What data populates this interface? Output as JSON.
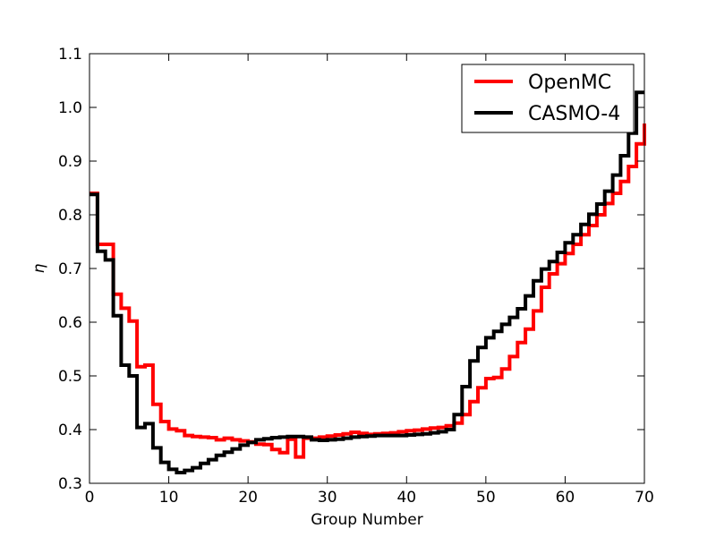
{
  "chart_data": {
    "type": "line",
    "step": "post",
    "title": "",
    "xlabel": "Group Number",
    "ylabel": "η",
    "xlim": [
      0,
      70
    ],
    "ylim": [
      0.3,
      1.1
    ],
    "xticks": [
      "0",
      "10",
      "20",
      "30",
      "40",
      "50",
      "60",
      "70"
    ],
    "yticks": [
      "0.3",
      "0.4",
      "0.5",
      "0.6",
      "0.7",
      "0.8",
      "0.9",
      "1.0",
      "1.1"
    ],
    "grid": false,
    "legend_position": "top-right",
    "x": [
      0,
      1,
      2,
      3,
      4,
      5,
      6,
      7,
      8,
      9,
      10,
      11,
      12,
      13,
      14,
      15,
      16,
      17,
      18,
      19,
      20,
      21,
      22,
      23,
      24,
      25,
      26,
      27,
      28,
      29,
      30,
      31,
      32,
      33,
      34,
      35,
      36,
      37,
      38,
      39,
      40,
      41,
      42,
      43,
      44,
      45,
      46,
      47,
      48,
      49,
      50,
      51,
      52,
      53,
      54,
      55,
      56,
      57,
      58,
      59,
      60,
      61,
      62,
      63,
      64,
      65,
      66,
      67,
      68,
      69,
      70
    ],
    "series": [
      {
        "name": "OpenMC",
        "color": "#ff0000",
        "values": [
          0.84,
          0.745,
          0.745,
          0.652,
          0.626,
          0.602,
          0.517,
          0.52,
          0.447,
          0.415,
          0.401,
          0.398,
          0.389,
          0.387,
          0.386,
          0.385,
          0.381,
          0.384,
          0.381,
          0.379,
          0.377,
          0.373,
          0.372,
          0.363,
          0.357,
          0.382,
          0.349,
          0.384,
          0.384,
          0.386,
          0.388,
          0.39,
          0.392,
          0.395,
          0.393,
          0.391,
          0.392,
          0.393,
          0.394,
          0.396,
          0.398,
          0.399,
          0.401,
          0.403,
          0.404,
          0.407,
          0.412,
          0.428,
          0.452,
          0.478,
          0.495,
          0.497,
          0.513,
          0.536,
          0.562,
          0.587,
          0.621,
          0.665,
          0.69,
          0.709,
          0.728,
          0.745,
          0.763,
          0.78,
          0.8,
          0.821,
          0.84,
          0.862,
          0.89,
          0.932,
          0.97
        ]
      },
      {
        "name": "CASMO-4",
        "color": "#000000",
        "values": [
          0.838,
          0.732,
          0.716,
          0.612,
          0.52,
          0.5,
          0.404,
          0.411,
          0.366,
          0.339,
          0.326,
          0.32,
          0.324,
          0.329,
          0.337,
          0.344,
          0.352,
          0.358,
          0.364,
          0.371,
          0.376,
          0.381,
          0.383,
          0.385,
          0.386,
          0.387,
          0.387,
          0.386,
          0.381,
          0.38,
          0.381,
          0.382,
          0.384,
          0.386,
          0.387,
          0.388,
          0.389,
          0.389,
          0.389,
          0.389,
          0.39,
          0.391,
          0.392,
          0.394,
          0.396,
          0.4,
          0.428,
          0.48,
          0.528,
          0.553,
          0.571,
          0.583,
          0.596,
          0.609,
          0.625,
          0.649,
          0.677,
          0.699,
          0.713,
          0.73,
          0.748,
          0.763,
          0.782,
          0.801,
          0.82,
          0.844,
          0.874,
          0.91,
          0.952,
          1.028,
          1.028
        ]
      }
    ]
  }
}
